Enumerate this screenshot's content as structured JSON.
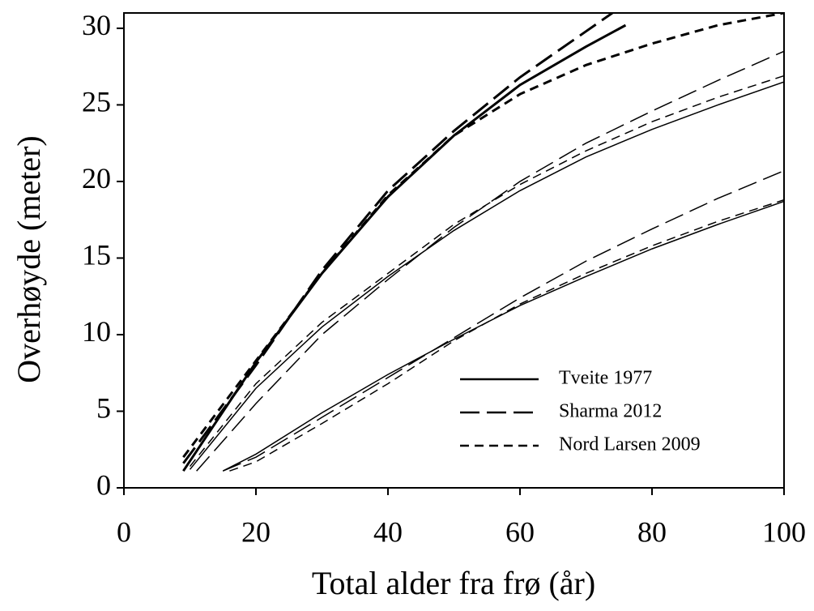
{
  "chart_data": {
    "type": "line",
    "xlabel": "Total alder fra frø (år)",
    "ylabel": "Overhøyde (meter)",
    "xlim": [
      0,
      100
    ],
    "ylim": [
      0,
      31
    ],
    "xticks": [
      0,
      20,
      40,
      60,
      80,
      100
    ],
    "yticks": [
      0,
      5,
      10,
      15,
      20,
      25,
      30
    ],
    "legend": "lower right",
    "series": [
      {
        "name": "Tveite 1977",
        "color": "#000000",
        "dash": "solid",
        "lines": [
          {
            "width": 3,
            "x": [
              9,
              20,
              30,
              40,
              50,
              60,
              70,
              76
            ],
            "values": [
              1.1,
              8.2,
              14.0,
              19.0,
              23.0,
              26.3,
              28.8,
              30.2
            ]
          },
          {
            "width": 1.5,
            "x": [
              10,
              20,
              30,
              40,
              50,
              60,
              70,
              80,
              90,
              100
            ],
            "values": [
              1.2,
              6.5,
              10.5,
              13.8,
              16.8,
              19.4,
              21.6,
              23.4,
              25.0,
              26.5
            ]
          },
          {
            "width": 1.5,
            "x": [
              15,
              20,
              30,
              40,
              50,
              60,
              70,
              80,
              90,
              100
            ],
            "values": [
              1.1,
              2.2,
              4.9,
              7.4,
              9.7,
              11.9,
              13.8,
              15.6,
              17.2,
              18.7
            ]
          }
        ]
      },
      {
        "name": "Sharma 2012",
        "color": "#000000",
        "dash": "long",
        "lines": [
          {
            "width": 3,
            "x": [
              9,
              20,
              30,
              40,
              50,
              60,
              70,
              74
            ],
            "values": [
              1.6,
              8.0,
              14.2,
              19.4,
              23.3,
              26.8,
              29.8,
              31.0
            ]
          },
          {
            "width": 1.5,
            "x": [
              11,
              20,
              30,
              40,
              50,
              60,
              70,
              80,
              90,
              100
            ],
            "values": [
              1.1,
              5.5,
              10.0,
              13.6,
              17.0,
              20.0,
              22.5,
              24.6,
              26.6,
              28.5
            ]
          },
          {
            "width": 1.5,
            "x": [
              15,
              20,
              30,
              40,
              50,
              60,
              70,
              80,
              90,
              100
            ],
            "values": [
              1.1,
              2.0,
              4.6,
              7.2,
              9.8,
              12.4,
              14.8,
              16.9,
              18.9,
              20.7
            ]
          }
        ]
      },
      {
        "name": "Nord Larsen 2009",
        "color": "#000000",
        "dash": "short",
        "lines": [
          {
            "width": 3,
            "x": [
              9,
              20,
              30,
              40,
              50,
              60,
              70,
              80,
              90,
              100
            ],
            "values": [
              2.0,
              8.3,
              14.0,
              19.1,
              23.0,
              25.7,
              27.6,
              29.0,
              30.2,
              31.0
            ]
          },
          {
            "width": 1.5,
            "x": [
              10,
              20,
              30,
              40,
              50,
              60,
              70,
              80,
              90,
              100
            ],
            "values": [
              1.4,
              6.8,
              10.8,
              14.0,
              17.2,
              19.8,
              22.0,
              23.9,
              25.5,
              26.9
            ]
          },
          {
            "width": 1.5,
            "x": [
              16,
              20,
              30,
              40,
              50,
              60,
              70,
              80,
              90,
              100
            ],
            "values": [
              1.1,
              1.7,
              4.2,
              6.8,
              9.6,
              12.0,
              14.0,
              15.8,
              17.4,
              18.8
            ]
          }
        ]
      }
    ]
  }
}
